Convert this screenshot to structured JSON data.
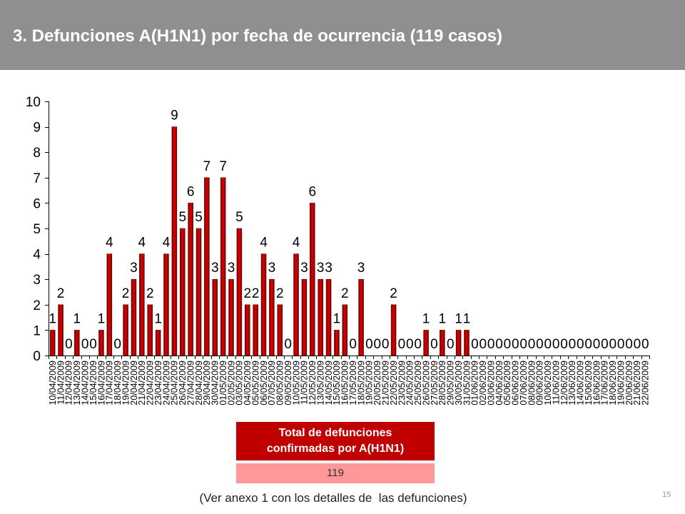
{
  "slide": {
    "title": "3. Defunciones A(H1N1) por fecha de ocurrencia (119 casos)",
    "footnote": "(Ver anexo 1 con los detalles de  las defunciones)",
    "page_number": "15"
  },
  "summary_table": {
    "header_lines": [
      "Total de defunciones",
      "confirmadas por A(H1N1)"
    ],
    "value": "119"
  },
  "colors": {
    "header_band": "#8f8f8f",
    "title_text": "#ffffff",
    "bar": "#d40000",
    "bar_edge": "#6b0000",
    "table_header": "#c00000",
    "table_value": "#ff9999"
  },
  "chart_data": {
    "type": "bar",
    "title": "",
    "xlabel": "",
    "ylabel": "",
    "ylim": [
      0,
      10
    ],
    "yticks": [
      0,
      1,
      2,
      3,
      4,
      5,
      6,
      7,
      8,
      9,
      10
    ],
    "grid": false,
    "legend": "none",
    "data_labels": true,
    "categories": [
      "10/04/2009",
      "11/04/2009",
      "12/04/2009",
      "13/04/2009",
      "14/04/2009",
      "15/04/2009",
      "16/04/2009",
      "17/04/2009",
      "18/04/2009",
      "19/04/2009",
      "20/04/2009",
      "21/04/2009",
      "22/04/2009",
      "23/04/2009",
      "24/04/2009",
      "25/04/2009",
      "26/04/2009",
      "27/04/2009",
      "28/04/2009",
      "29/04/2009",
      "30/04/2009",
      "01/05/2009",
      "02/05/2009",
      "03/05/2009",
      "04/05/2009",
      "05/05/2009",
      "06/05/2009",
      "07/05/2009",
      "08/05/2009",
      "09/05/2009",
      "10/05/2009",
      "11/05/2009",
      "12/05/2009",
      "13/05/2009",
      "14/05/2009",
      "15/05/2009",
      "16/05/2009",
      "17/05/2009",
      "18/05/2009",
      "19/05/2009",
      "20/05/2009",
      "21/05/2009",
      "22/05/2009",
      "23/05/2009",
      "24/05/2009",
      "25/05/2009",
      "26/05/2009",
      "27/05/2009",
      "28/05/2009",
      "29/05/2009",
      "30/05/2009",
      "31/05/2009",
      "01/06/2009",
      "02/06/2009",
      "03/06/2009",
      "04/06/2009",
      "05/06/2009",
      "06/06/2009",
      "07/06/2009",
      "08/06/2009",
      "09/06/2009",
      "10/06/2009",
      "11/06/2009",
      "12/06/2009",
      "13/06/2009",
      "14/06/2009",
      "15/06/2009",
      "16/06/2009",
      "17/06/2009",
      "18/06/2009",
      "19/06/2009",
      "20/06/2009",
      "21/06/2009",
      "22/06/2009"
    ],
    "values": [
      1,
      2,
      0,
      1,
      0,
      0,
      1,
      4,
      0,
      2,
      3,
      4,
      2,
      1,
      4,
      9,
      5,
      6,
      5,
      7,
      3,
      7,
      3,
      5,
      2,
      2,
      4,
      3,
      2,
      0,
      4,
      3,
      6,
      3,
      3,
      1,
      2,
      0,
      3,
      0,
      0,
      0,
      2,
      0,
      0,
      0,
      1,
      0,
      1,
      0,
      1,
      1,
      0,
      0,
      0,
      0,
      0,
      0,
      0,
      0,
      0,
      0,
      0,
      0,
      0,
      0,
      0,
      0,
      0,
      0,
      0,
      0,
      0,
      0
    ]
  }
}
